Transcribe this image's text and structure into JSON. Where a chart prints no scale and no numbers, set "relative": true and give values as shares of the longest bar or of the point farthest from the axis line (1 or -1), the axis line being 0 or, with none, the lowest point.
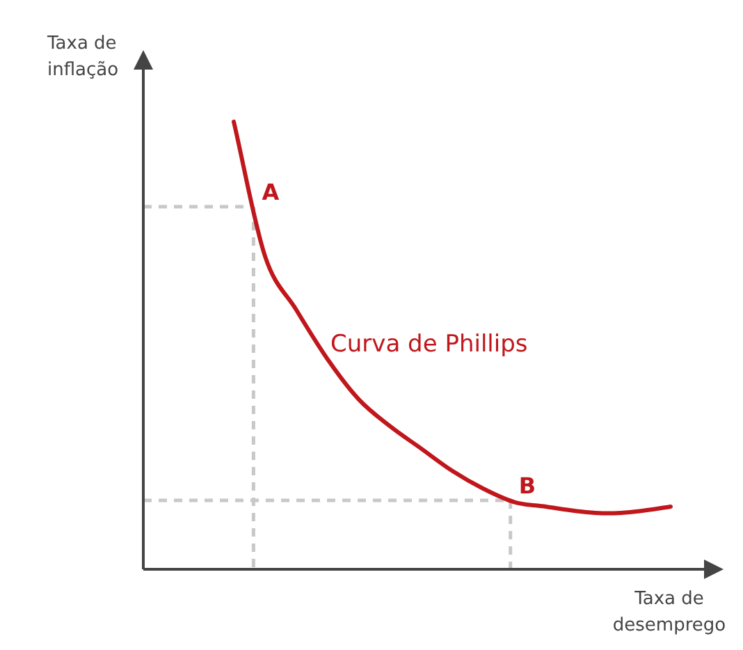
{
  "chart_data": {
    "type": "line",
    "relative": true,
    "xlabel": "Taxa de desemprego",
    "categories": [
      null,
      null,
      null,
      null,
      null,
      null,
      null,
      null,
      null,
      null,
      null,
      null,
      null,
      null,
      null
    ],
    "series": [
      {
        "color": "#c0171c",
        "values": [
          1.0,
          0.7,
          0.58,
          0.47,
          0.38,
          0.32,
          0.27,
          0.22,
          0.18,
          0.15,
          0.14,
          0.13,
          0.125,
          0.13,
          0.14
        ]
      }
    ],
    "ref_lines": [
      {
        "axis": "y",
        "value": 0.81,
        "label": "A",
        "color": "#c8c8c8",
        "line_style": "dashed"
      },
      {
        "axis": "y",
        "value": 0.154,
        "label": "B",
        "color": "#c8c8c8",
        "line_style": "dashed"
      }
    ],
    "annotations": [
      "Taxa de inflação",
      "Curva de Phillips"
    ],
    "marker": "none",
    "line_style": "solid",
    "grid": false,
    "legend": false
  }
}
